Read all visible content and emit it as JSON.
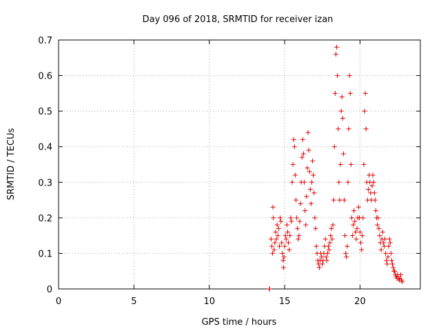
{
  "chart_data": {
    "type": "scatter",
    "title": "Day 096 of 2018, SRMTID for receiver izan",
    "xlabel": "GPS time / hours",
    "ylabel": "SRMTID / TECUs",
    "xlim": [
      0,
      24
    ],
    "ylim": [
      0,
      0.7
    ],
    "xticks": [
      0,
      5,
      10,
      15,
      20
    ],
    "xtick_labels": [
      "0",
      "5",
      "10",
      "15",
      "20"
    ],
    "yticks": [
      0,
      0.1,
      0.2,
      0.3,
      0.4,
      0.5,
      0.6,
      0.7
    ],
    "ytick_labels": [
      "0",
      "0.1",
      "0.2",
      "0.3",
      "0.4",
      "0.5",
      "0.6",
      "0.7"
    ],
    "grid": true,
    "legend": "none",
    "series": [
      {
        "name": "SRMTID",
        "marker": "plus",
        "color": "#e00000",
        "points": [
          [
            13.98,
            0.0
          ],
          [
            14.0,
            0.0
          ],
          [
            14.1,
            0.14
          ],
          [
            14.15,
            0.12
          ],
          [
            14.2,
            0.1
          ],
          [
            14.22,
            0.23
          ],
          [
            14.25,
            0.2
          ],
          [
            14.3,
            0.11
          ],
          [
            14.35,
            0.13
          ],
          [
            14.4,
            0.16
          ],
          [
            14.45,
            0.14
          ],
          [
            14.5,
            0.18
          ],
          [
            14.55,
            0.15
          ],
          [
            14.6,
            0.17
          ],
          [
            14.65,
            0.12
          ],
          [
            14.7,
            0.2
          ],
          [
            14.75,
            0.19
          ],
          [
            14.8,
            0.13
          ],
          [
            14.85,
            0.1
          ],
          [
            14.9,
            0.08
          ],
          [
            14.92,
            0.06
          ],
          [
            14.95,
            0.09
          ],
          [
            15.0,
            0.12
          ],
          [
            15.05,
            0.15
          ],
          [
            15.1,
            0.14
          ],
          [
            15.15,
            0.18
          ],
          [
            15.2,
            0.16
          ],
          [
            15.25,
            0.13
          ],
          [
            15.3,
            0.11
          ],
          [
            15.35,
            0.15
          ],
          [
            15.4,
            0.2
          ],
          [
            15.45,
            0.19
          ],
          [
            15.5,
            0.3
          ],
          [
            15.55,
            0.35
          ],
          [
            15.6,
            0.42
          ],
          [
            15.65,
            0.4
          ],
          [
            15.7,
            0.32
          ],
          [
            15.75,
            0.25
          ],
          [
            15.8,
            0.2
          ],
          [
            15.85,
            0.17
          ],
          [
            15.9,
            0.14
          ],
          [
            15.95,
            0.15
          ],
          [
            16.0,
            0.19
          ],
          [
            16.05,
            0.24
          ],
          [
            16.1,
            0.3
          ],
          [
            16.15,
            0.37
          ],
          [
            16.2,
            0.42
          ],
          [
            16.25,
            0.38
          ],
          [
            16.3,
            0.3
          ],
          [
            16.35,
            0.22
          ],
          [
            16.4,
            0.18
          ],
          [
            16.45,
            0.26
          ],
          [
            16.5,
            0.34
          ],
          [
            16.55,
            0.44
          ],
          [
            16.6,
            0.39
          ],
          [
            16.65,
            0.33
          ],
          [
            16.7,
            0.28
          ],
          [
            16.75,
            0.24
          ],
          [
            16.8,
            0.3
          ],
          [
            16.85,
            0.36
          ],
          [
            16.9,
            0.32
          ],
          [
            16.95,
            0.27
          ],
          [
            17.0,
            0.2
          ],
          [
            17.05,
            0.17
          ],
          [
            17.1,
            0.12
          ],
          [
            17.15,
            0.1
          ],
          [
            17.2,
            0.08
          ],
          [
            17.25,
            0.07
          ],
          [
            17.3,
            0.06
          ],
          [
            17.35,
            0.08
          ],
          [
            17.4,
            0.1
          ],
          [
            17.45,
            0.09
          ],
          [
            17.5,
            0.07
          ],
          [
            17.55,
            0.08
          ],
          [
            17.6,
            0.1
          ],
          [
            17.65,
            0.12
          ],
          [
            17.7,
            0.14
          ],
          [
            17.75,
            0.09
          ],
          [
            17.8,
            0.08
          ],
          [
            17.85,
            0.1
          ],
          [
            17.9,
            0.12
          ],
          [
            17.95,
            0.11
          ],
          [
            18.0,
            0.13
          ],
          [
            18.05,
            0.15
          ],
          [
            18.1,
            0.17
          ],
          [
            18.15,
            0.14
          ],
          [
            18.2,
            0.18
          ],
          [
            18.25,
            0.25
          ],
          [
            18.3,
            0.4
          ],
          [
            18.35,
            0.55
          ],
          [
            18.4,
            0.66
          ],
          [
            18.45,
            0.68
          ],
          [
            18.5,
            0.6
          ],
          [
            18.55,
            0.45
          ],
          [
            18.6,
            0.3
          ],
          [
            18.65,
            0.25
          ],
          [
            18.7,
            0.35
          ],
          [
            18.75,
            0.5
          ],
          [
            18.8,
            0.54
          ],
          [
            18.85,
            0.48
          ],
          [
            18.9,
            0.38
          ],
          [
            18.95,
            0.25
          ],
          [
            19.0,
            0.15
          ],
          [
            19.05,
            0.1
          ],
          [
            19.1,
            0.09
          ],
          [
            19.15,
            0.12
          ],
          [
            19.2,
            0.3
          ],
          [
            19.25,
            0.45
          ],
          [
            19.3,
            0.6
          ],
          [
            19.35,
            0.55
          ],
          [
            19.4,
            0.35
          ],
          [
            19.45,
            0.2
          ],
          [
            19.5,
            0.15
          ],
          [
            19.55,
            0.18
          ],
          [
            19.6,
            0.22
          ],
          [
            19.65,
            0.19
          ],
          [
            19.7,
            0.16
          ],
          [
            19.75,
            0.14
          ],
          [
            19.8,
            0.17
          ],
          [
            19.85,
            0.2
          ],
          [
            19.9,
            0.23
          ],
          [
            19.95,
            0.2
          ],
          [
            20.0,
            0.16
          ],
          [
            20.05,
            0.13
          ],
          [
            20.1,
            0.11
          ],
          [
            20.15,
            0.15
          ],
          [
            20.2,
            0.2
          ],
          [
            20.25,
            0.35
          ],
          [
            20.3,
            0.5
          ],
          [
            20.35,
            0.55
          ],
          [
            20.4,
            0.45
          ],
          [
            20.45,
            0.3
          ],
          [
            20.5,
            0.25
          ],
          [
            20.55,
            0.28
          ],
          [
            20.6,
            0.32
          ],
          [
            20.65,
            0.3
          ],
          [
            20.7,
            0.27
          ],
          [
            20.75,
            0.25
          ],
          [
            20.8,
            0.29
          ],
          [
            20.85,
            0.32
          ],
          [
            20.9,
            0.3
          ],
          [
            20.95,
            0.27
          ],
          [
            21.0,
            0.25
          ],
          [
            21.05,
            0.22
          ],
          [
            21.1,
            0.2
          ],
          [
            21.15,
            0.18
          ],
          [
            21.2,
            0.2
          ],
          [
            21.25,
            0.17
          ],
          [
            21.3,
            0.15
          ],
          [
            21.35,
            0.13
          ],
          [
            21.4,
            0.11
          ],
          [
            21.45,
            0.14
          ],
          [
            21.5,
            0.16
          ],
          [
            21.55,
            0.13
          ],
          [
            21.6,
            0.12
          ],
          [
            21.65,
            0.14
          ],
          [
            21.7,
            0.1
          ],
          [
            21.75,
            0.08
          ],
          [
            21.8,
            0.07
          ],
          [
            21.85,
            0.09
          ],
          [
            21.9,
            0.12
          ],
          [
            21.95,
            0.14
          ],
          [
            22.0,
            0.13
          ],
          [
            22.05,
            0.1
          ],
          [
            22.1,
            0.08
          ],
          [
            22.15,
            0.07
          ],
          [
            22.2,
            0.06
          ],
          [
            22.25,
            0.05
          ],
          [
            22.3,
            0.05
          ],
          [
            22.35,
            0.04
          ],
          [
            22.4,
            0.035
          ],
          [
            22.45,
            0.03
          ],
          [
            22.5,
            0.04
          ],
          [
            22.55,
            0.03
          ],
          [
            22.6,
            0.025
          ],
          [
            22.65,
            0.03
          ],
          [
            22.7,
            0.04
          ],
          [
            22.75,
            0.025
          ],
          [
            22.8,
            0.02
          ]
        ]
      }
    ]
  }
}
